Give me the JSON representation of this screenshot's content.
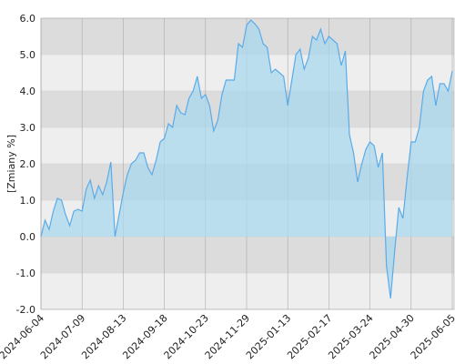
{
  "chart_data": {
    "type": "area",
    "ylabel": "[Zmiany %]",
    "categories": [
      "2024-06-04",
      null,
      null,
      null,
      null,
      null,
      null,
      null,
      null,
      null,
      "2024-07-09",
      null,
      null,
      null,
      null,
      null,
      null,
      null,
      null,
      null,
      "2024-08-13",
      null,
      null,
      null,
      null,
      null,
      null,
      null,
      null,
      null,
      "2024-09-18",
      null,
      null,
      null,
      null,
      null,
      null,
      null,
      null,
      null,
      "2024-10-23",
      null,
      null,
      null,
      null,
      null,
      null,
      null,
      null,
      null,
      "2024-11-29",
      null,
      null,
      null,
      null,
      null,
      null,
      null,
      null,
      null,
      "2025-01-13",
      null,
      null,
      null,
      null,
      null,
      null,
      null,
      null,
      null,
      "2025-02-17",
      null,
      null,
      null,
      null,
      null,
      null,
      null,
      null,
      null,
      "2025-03-24",
      null,
      null,
      null,
      null,
      null,
      null,
      null,
      null,
      null,
      "2025-04-30",
      null,
      null,
      null,
      null,
      null,
      null,
      null,
      null,
      null,
      "2025-06-05"
    ],
    "values": [
      0.0,
      0.45,
      0.2,
      0.7,
      1.05,
      1.0,
      0.6,
      0.3,
      0.7,
      0.75,
      0.7,
      1.3,
      1.55,
      1.05,
      1.4,
      1.15,
      1.5,
      2.05,
      0.0,
      0.6,
      1.2,
      1.7,
      2.0,
      2.1,
      2.3,
      2.3,
      1.9,
      1.7,
      2.1,
      2.6,
      2.7,
      3.1,
      3.0,
      3.6,
      3.4,
      3.35,
      3.8,
      4.0,
      4.4,
      3.8,
      3.9,
      3.6,
      2.9,
      3.2,
      3.9,
      4.3,
      4.3,
      4.3,
      5.3,
      5.2,
      5.8,
      5.95,
      5.85,
      5.7,
      5.3,
      5.2,
      4.5,
      4.6,
      4.5,
      4.4,
      3.6,
      4.3,
      5.0,
      5.15,
      4.6,
      4.9,
      5.5,
      5.4,
      5.7,
      5.3,
      5.5,
      5.4,
      5.3,
      4.7,
      5.1,
      2.8,
      2.3,
      1.5,
      2.0,
      2.4,
      2.6,
      2.5,
      1.9,
      2.3,
      -0.8,
      -1.7,
      -0.4,
      0.8,
      0.5,
      1.6,
      2.6,
      2.6,
      3.0,
      4.0,
      4.3,
      4.4,
      3.6,
      4.2,
      4.2,
      4.0,
      4.55
    ],
    "color": "#5aabe8",
    "fill": "#a9d8ef",
    "ylim": [
      -2,
      6
    ],
    "yticks": [
      {
        "value": -2,
        "label": "-2.0"
      },
      {
        "value": -1,
        "label": "-1.0"
      },
      {
        "value": 0,
        "label": "0.0"
      },
      {
        "value": 1,
        "label": "1.0"
      },
      {
        "value": 2,
        "label": "2.0"
      },
      {
        "value": 3,
        "label": "3.0"
      },
      {
        "value": 4,
        "label": "4.0"
      },
      {
        "value": 5,
        "label": "5.0"
      },
      {
        "value": 6,
        "label": "6.0"
      }
    ],
    "grid": true
  }
}
